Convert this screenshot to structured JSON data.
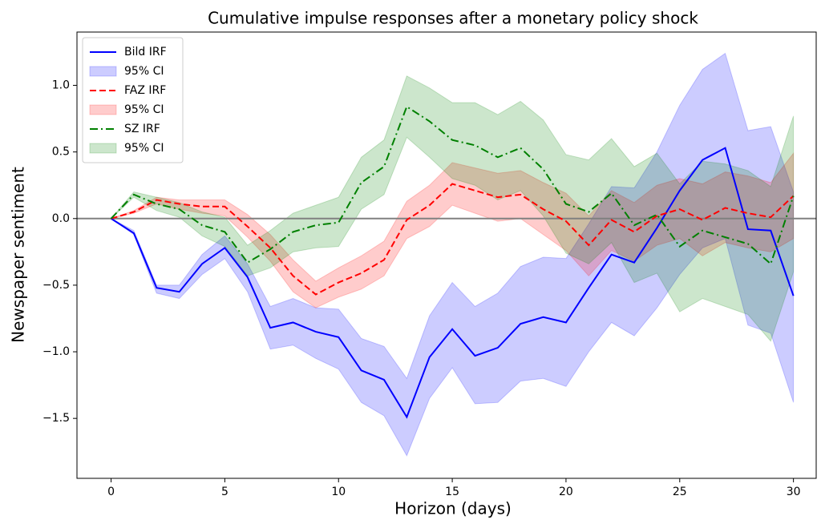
{
  "chart_data": {
    "type": "line",
    "title": "Cumulative impulse responses after a monetary policy shock",
    "xlabel": "Horizon (days)",
    "ylabel": "Newspaper sentiment",
    "x": [
      0,
      1,
      2,
      3,
      4,
      5,
      6,
      7,
      8,
      9,
      10,
      11,
      12,
      13,
      14,
      15,
      16,
      17,
      18,
      19,
      20,
      21,
      22,
      23,
      24,
      25,
      26,
      27,
      28,
      29,
      30
    ],
    "xlim": [
      -1.5,
      31
    ],
    "ylim": [
      -1.95,
      1.4
    ],
    "xticks": [
      0,
      5,
      10,
      15,
      20,
      25,
      30
    ],
    "yticks": [
      {
        "value": -1.5,
        "label": "−1.5"
      },
      {
        "value": -1,
        "label": "−1.0"
      },
      {
        "value": -0.5,
        "label": "−0.5"
      },
      {
        "value": 0,
        "label": "0.0"
      },
      0.5,
      {
        "value": 1,
        "label": "1.0"
      }
    ],
    "hline": 0,
    "hline_color": "#808080",
    "legend": "upper left",
    "series": [
      {
        "name": "Bild IRF",
        "color": "#0000ff",
        "linestyle": "-",
        "values": [
          0,
          -0.11,
          -0.52,
          -0.55,
          -0.34,
          -0.22,
          -0.44,
          -0.82,
          -0.78,
          -0.85,
          -0.89,
          -1.14,
          -1.21,
          -1.49,
          -1.04,
          -0.83,
          -1.03,
          -0.97,
          -0.79,
          -0.74,
          -0.78,
          -0.52,
          -0.27,
          -0.33,
          -0.07,
          0.21,
          0.44,
          0.53,
          -0.08,
          -0.09,
          -0.58
        ]
      },
      {
        "name": "95% CI",
        "color": "#0000ff",
        "lower": [
          0,
          -0.12,
          -0.56,
          -0.6,
          -0.42,
          -0.3,
          -0.55,
          -0.98,
          -0.95,
          -1.05,
          -1.13,
          -1.38,
          -1.48,
          -1.78,
          -1.35,
          -1.12,
          -1.39,
          -1.38,
          -1.22,
          -1.2,
          -1.26,
          -1.0,
          -0.78,
          -0.88,
          -0.67,
          -0.42,
          -0.22,
          -0.15,
          -0.8,
          -0.86,
          -1.38
        ],
        "upper": [
          0,
          -0.09,
          -0.5,
          -0.5,
          -0.27,
          -0.13,
          -0.34,
          -0.66,
          -0.6,
          -0.67,
          -0.68,
          -0.9,
          -0.96,
          -1.2,
          -0.73,
          -0.48,
          -0.66,
          -0.56,
          -0.36,
          -0.29,
          -0.3,
          -0.04,
          0.24,
          0.23,
          0.5,
          0.85,
          1.12,
          1.24,
          0.66,
          0.69,
          0.2
        ]
      },
      {
        "name": "FAZ IRF",
        "color": "#ff0000",
        "linestyle": "--",
        "values": [
          0,
          0.05,
          0.14,
          0.11,
          0.09,
          0.09,
          -0.06,
          -0.22,
          -0.43,
          -0.57,
          -0.48,
          -0.41,
          -0.31,
          -0.01,
          0.1,
          0.26,
          0.21,
          0.16,
          0.18,
          0.07,
          -0.02,
          -0.2,
          -0.01,
          -0.1,
          0.02,
          0.07,
          -0.01,
          0.08,
          0.04,
          0.01,
          0.17
        ]
      },
      {
        "name": "95% CI",
        "color": "#ff0000",
        "lower": [
          0,
          0.04,
          0.11,
          0.07,
          0.04,
          0.02,
          -0.14,
          -0.32,
          -0.55,
          -0.67,
          -0.59,
          -0.53,
          -0.43,
          -0.15,
          -0.06,
          0.1,
          0.04,
          -0.02,
          0,
          -0.12,
          -0.24,
          -0.43,
          -0.24,
          -0.32,
          -0.2,
          -0.15,
          -0.28,
          -0.18,
          -0.22,
          -0.25,
          -0.15
        ],
        "upper": [
          0,
          0.06,
          0.16,
          0.14,
          0.14,
          0.14,
          0.03,
          -0.12,
          -0.31,
          -0.47,
          -0.37,
          -0.28,
          -0.17,
          0.13,
          0.25,
          0.42,
          0.38,
          0.34,
          0.36,
          0.27,
          0.19,
          0.02,
          0.21,
          0.12,
          0.25,
          0.3,
          0.26,
          0.35,
          0.32,
          0.27,
          0.49
        ]
      },
      {
        "name": "SZ IRF",
        "color": "#008000",
        "linestyle": "-.",
        "values": [
          0,
          0.18,
          0.11,
          0.07,
          -0.05,
          -0.1,
          -0.33,
          -0.23,
          -0.1,
          -0.05,
          -0.03,
          0.27,
          0.39,
          0.84,
          0.73,
          0.59,
          0.55,
          0.46,
          0.53,
          0.37,
          0.11,
          0.05,
          0.19,
          -0.05,
          0.03,
          -0.21,
          -0.09,
          -0.14,
          -0.19,
          -0.34,
          0.17
        ]
      },
      {
        "name": "95% CI",
        "color": "#008000",
        "lower": [
          0,
          0.16,
          0.06,
          0.01,
          -0.13,
          -0.21,
          -0.43,
          -0.37,
          -0.25,
          -0.22,
          -0.21,
          0.07,
          0.18,
          0.61,
          0.46,
          0.3,
          0.25,
          0.14,
          0.21,
          0.02,
          -0.26,
          -0.34,
          -0.18,
          -0.48,
          -0.41,
          -0.7,
          -0.6,
          -0.66,
          -0.72,
          -0.92,
          -0.4
        ],
        "upper": [
          0,
          0.2,
          0.16,
          0.12,
          0.05,
          0.01,
          -0.2,
          -0.09,
          0.04,
          0.1,
          0.16,
          0.46,
          0.59,
          1.07,
          0.98,
          0.87,
          0.87,
          0.78,
          0.88,
          0.74,
          0.48,
          0.44,
          0.6,
          0.39,
          0.49,
          0.26,
          0.43,
          0.41,
          0.36,
          0.24,
          0.77
        ]
      }
    ]
  }
}
